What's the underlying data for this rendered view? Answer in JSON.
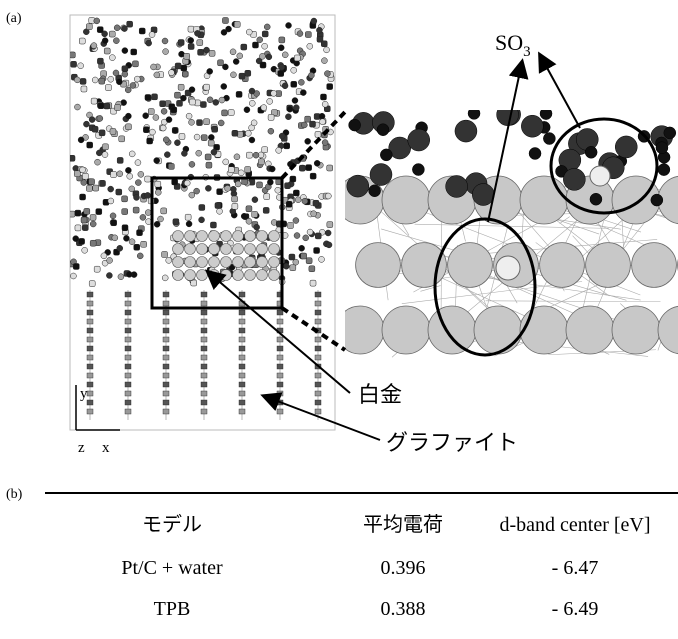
{
  "panel_a": {
    "label": "(a)",
    "so3": {
      "text": "SO",
      "subscript": "3"
    },
    "platinum": "白金",
    "graphite": "グラファイト",
    "axes": {
      "y": "y",
      "z": "z",
      "x": "x"
    }
  },
  "panel_b": {
    "label": "(b)",
    "table": {
      "header": [
        "モデル",
        "平均電荷",
        "d-band center [eV]"
      ],
      "rows": [
        [
          "Pt/C + water",
          "0.396",
          "- 6.47"
        ],
        [
          "TPB",
          "0.388",
          "- 6.49"
        ]
      ]
    }
  }
}
